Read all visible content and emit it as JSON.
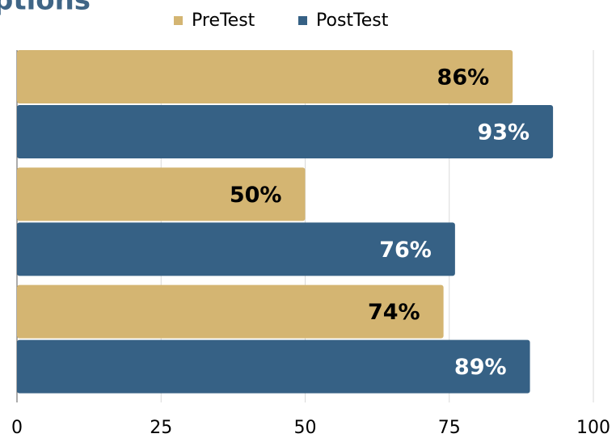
{
  "chart_data": {
    "type": "bar",
    "orientation": "horizontal",
    "title": "ptions",
    "categories": [
      null,
      null,
      null
    ],
    "series": [
      {
        "name": "PreTest",
        "color": "#d4b572",
        "values": [
          86,
          50,
          74
        ],
        "value_labels": [
          "86%",
          "50%",
          "74%"
        ],
        "label_color": "#000000"
      },
      {
        "name": "PostTest",
        "color": "#366185",
        "values": [
          93,
          76,
          89
        ],
        "value_labels": [
          "93%",
          "76%",
          "89%"
        ],
        "label_color": "#ffffff"
      }
    ],
    "xlim": [
      0,
      100
    ],
    "xticks": [
      0,
      25,
      50,
      75,
      100
    ],
    "grid": true,
    "legend": "top"
  }
}
